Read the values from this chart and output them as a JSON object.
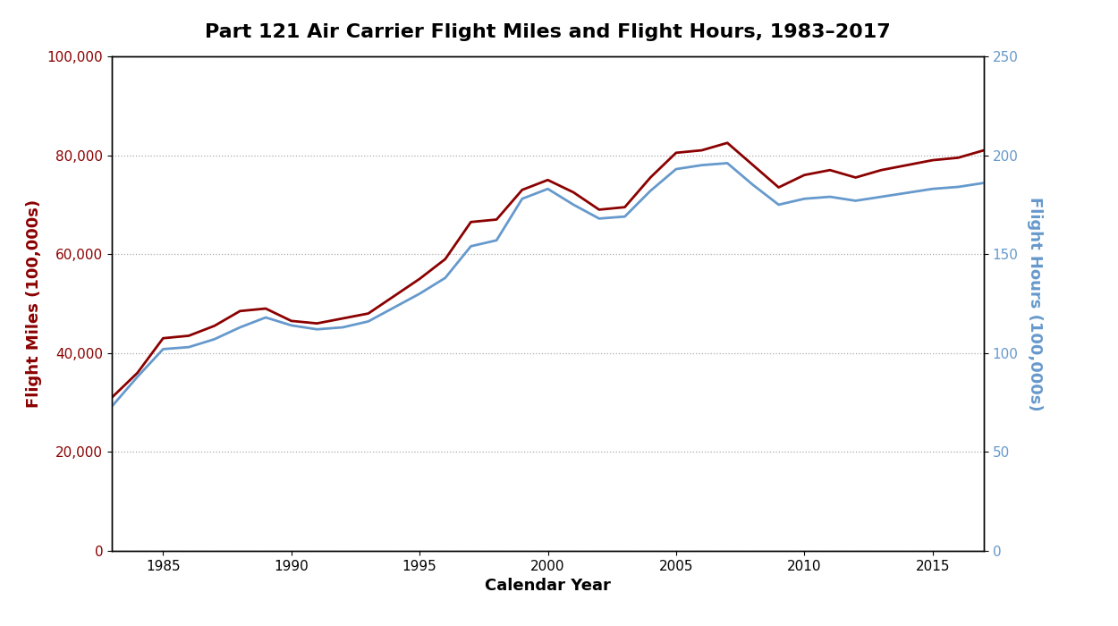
{
  "title": "Part 121 Air Carrier Flight Miles and Flight Hours, 1983–2017",
  "xlabel": "Calendar Year",
  "ylabel_left": "Flight Miles (100,000s)",
  "ylabel_right": "Flight Hours (100,000s)",
  "years": [
    1983,
    1984,
    1985,
    1986,
    1987,
    1988,
    1989,
    1990,
    1991,
    1992,
    1993,
    1994,
    1995,
    1996,
    1997,
    1998,
    1999,
    2000,
    2001,
    2002,
    2003,
    2004,
    2005,
    2006,
    2007,
    2008,
    2009,
    2010,
    2011,
    2012,
    2013,
    2014,
    2015,
    2016,
    2017
  ],
  "flight_miles": [
    31000,
    36000,
    43000,
    43500,
    45500,
    48500,
    49000,
    46500,
    46000,
    47000,
    48000,
    51500,
    55000,
    59000,
    66500,
    67000,
    73000,
    75000,
    72500,
    69000,
    69500,
    75500,
    80500,
    81000,
    82500,
    78000,
    73500,
    76000,
    77000,
    75500,
    77000,
    78000,
    79000,
    79500,
    81000
  ],
  "flight_hours": [
    73,
    88,
    102,
    103,
    107,
    113,
    118,
    114,
    112,
    113,
    116,
    123,
    130,
    138,
    154,
    157,
    178,
    183,
    175,
    168,
    169,
    182,
    193,
    195,
    196,
    185,
    175,
    178,
    179,
    177,
    179,
    181,
    183,
    184,
    186
  ],
  "miles_color": "#8B0000",
  "hours_color": "#6699CC",
  "background_color": "#ffffff",
  "title_fontsize": 16,
  "axis_label_fontsize": 13,
  "tick_fontsize": 11,
  "ylim_left": [
    0,
    100000
  ],
  "ylim_right": [
    0,
    250
  ],
  "yticks_left": [
    0,
    20000,
    40000,
    60000,
    80000,
    100000
  ],
  "yticks_right": [
    0,
    50,
    100,
    150,
    200,
    250
  ],
  "xticks": [
    1985,
    1990,
    1995,
    2000,
    2005,
    2010,
    2015
  ],
  "xlim": [
    1983,
    2017
  ],
  "grid_color": "#aaaaaa",
  "line_width": 2.0,
  "spine_color": "#000000"
}
